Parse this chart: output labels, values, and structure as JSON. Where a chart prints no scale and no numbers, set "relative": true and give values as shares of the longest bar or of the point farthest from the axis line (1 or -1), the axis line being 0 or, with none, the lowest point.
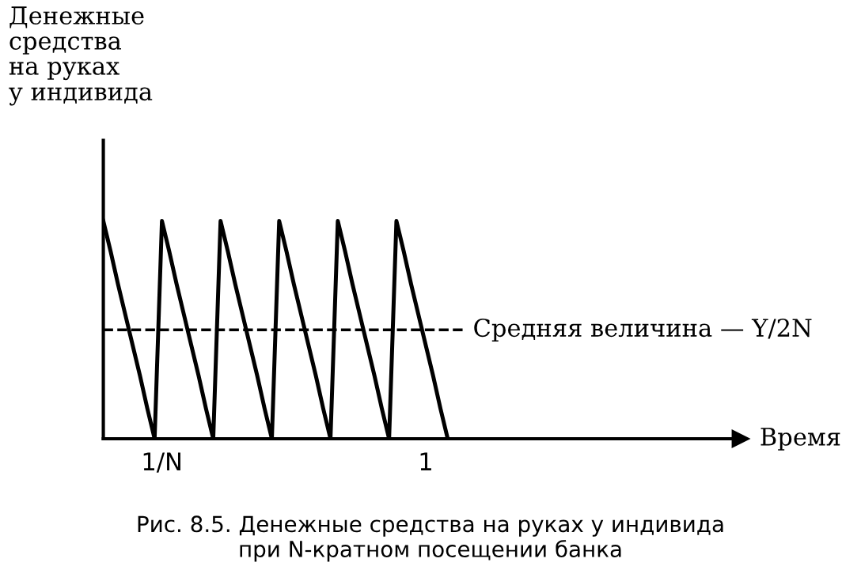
{
  "chart_data": {
    "type": "line",
    "relative": true,
    "ylabel": "Денежные\nсредства\nна руках\nу индивида",
    "categories": [
      null,
      null,
      null,
      null,
      null,
      null,
      null,
      null,
      "1/N",
      null,
      null,
      null,
      null,
      null,
      null,
      null,
      null,
      null,
      null,
      null,
      null,
      null,
      null,
      null,
      null,
      null,
      null,
      null,
      null,
      null,
      null,
      null,
      null,
      null,
      null,
      null,
      null,
      null,
      null,
      null,
      null,
      null,
      null,
      null,
      "1",
      null,
      null,
      null
    ],
    "series": [
      {
        "color": "#000000",
        "values": [
          1,
          0.86,
          0.71,
          0.57,
          0.43,
          0.29,
          0.14,
          0,
          1,
          0.86,
          0.71,
          0.57,
          0.43,
          0.29,
          0.14,
          0,
          1,
          0.86,
          0.71,
          0.57,
          0.43,
          0.29,
          0.14,
          0,
          1,
          0.86,
          0.71,
          0.57,
          0.43,
          0.29,
          0.14,
          0,
          1,
          0.86,
          0.71,
          0.57,
          0.43,
          0.29,
          0.14,
          0,
          1,
          0.86,
          0.71,
          0.57,
          0.43,
          0.29,
          0.14,
          0
        ]
      }
    ],
    "ref_lines": [
      {
        "axis": "y",
        "value": 0.5,
        "label": "Средняя величина — Y/2N",
        "line_style": "dashed",
        "color": "#000000"
      }
    ],
    "annotations": [
      "Время",
      "Рис. 8.5. Денежные средства на руках у индивида\nпри N-кратном посещении банка"
    ],
    "legend": false,
    "marker": "none",
    "line_style": "solid"
  }
}
